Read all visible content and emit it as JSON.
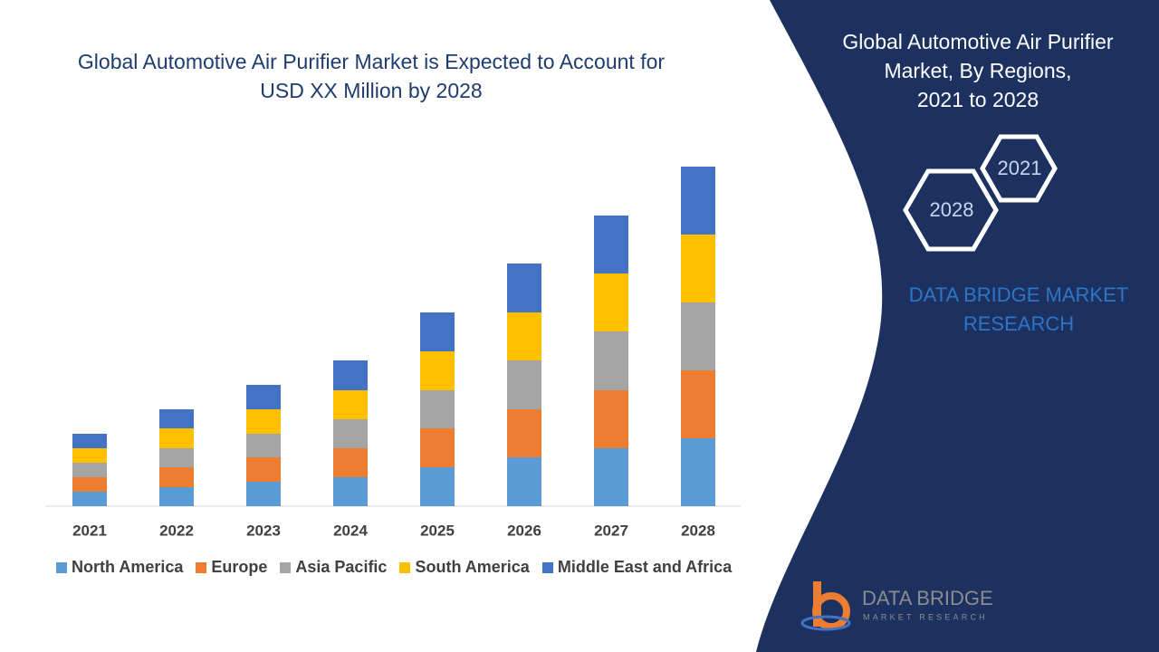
{
  "chart_data": {
    "type": "bar",
    "stacked": true,
    "title": "Global Automotive Air Purifier Market is Expected to Account for USD XX Million by 2028",
    "categories": [
      "2021",
      "2022",
      "2023",
      "2024",
      "2025",
      "2026",
      "2027",
      "2028"
    ],
    "series": [
      {
        "name": "North America",
        "color": "#5b9bd5",
        "values": [
          16,
          21,
          27,
          32,
          43,
          54,
          64,
          75
        ]
      },
      {
        "name": "Europe",
        "color": "#ed7d31",
        "values": [
          16,
          22,
          27,
          32,
          43,
          53,
          64,
          75
        ]
      },
      {
        "name": "Asia Pacific",
        "color": "#a5a5a5",
        "values": [
          16,
          21,
          26,
          32,
          42,
          54,
          65,
          75
        ]
      },
      {
        "name": "South America",
        "color": "#ffc000",
        "values": [
          16,
          22,
          27,
          32,
          43,
          53,
          64,
          75
        ]
      },
      {
        "name": "Middle East and Africa",
        "color": "#4472c4",
        "values": [
          16,
          21,
          27,
          33,
          43,
          54,
          64,
          75
        ]
      }
    ],
    "legend": "bottom"
  },
  "panel": {
    "title_lines": [
      "Global Automotive Air Purifier",
      "Market, By Regions,",
      "2021 to 2028"
    ],
    "hex_back": "2021",
    "hex_front": "2028",
    "brand_lines": [
      "DATA BRIDGE MARKET",
      "RESEARCH"
    ]
  },
  "logo": {
    "name": "DATA BRIDGE",
    "tagline": "MARKET RESEARCH"
  }
}
